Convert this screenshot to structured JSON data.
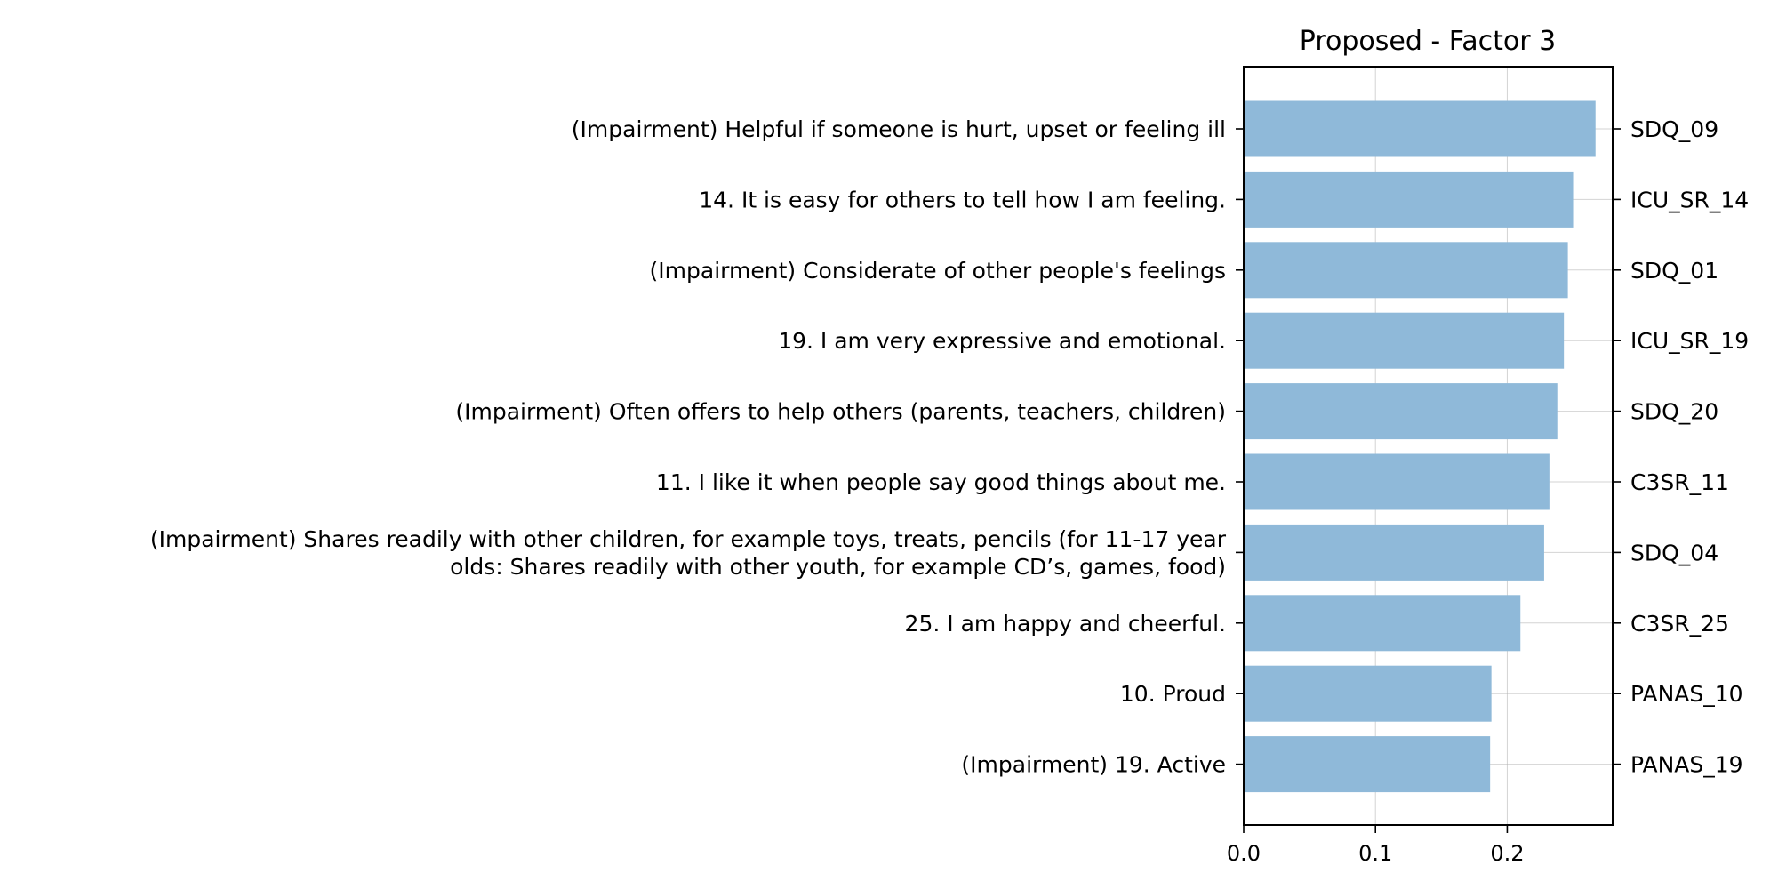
{
  "chart_data": {
    "type": "bar",
    "orientation": "horizontal",
    "title": "Proposed - Factor 3",
    "xlabel": "",
    "ylabel": "",
    "xlim": [
      0,
      0.28
    ],
    "x_ticks": [
      "0.0",
      "0.1",
      "0.2"
    ],
    "x_tick_values": [
      0.0,
      0.1,
      0.2
    ],
    "grid": true,
    "bar_color": "#8fb9d9",
    "bars": [
      {
        "label": [
          "(Impairment) Helpful if someone is hurt, upset or feeling ill"
        ],
        "code": "SDQ_09",
        "value": 0.267
      },
      {
        "label": [
          "14. It is easy for others to tell how I am feeling."
        ],
        "code": "ICU_SR_14",
        "value": 0.25
      },
      {
        "label": [
          "(Impairment) Considerate of other people's feelings"
        ],
        "code": "SDQ_01",
        "value": 0.246
      },
      {
        "label": [
          "19. I am very expressive and emotional."
        ],
        "code": "ICU_SR_19",
        "value": 0.243
      },
      {
        "label": [
          "(Impairment) Often offers to help others (parents, teachers, children)"
        ],
        "code": "SDQ_20",
        "value": 0.238
      },
      {
        "label": [
          "11. I like it when people say good things about me."
        ],
        "code": "C3SR_11",
        "value": 0.232
      },
      {
        "label": [
          "(Impairment) Shares readily with other children, for example toys, treats, pencils (for 11-17 year",
          "olds: Shares readily with other youth, for example CD’s, games, food)"
        ],
        "code": "SDQ_04",
        "value": 0.228
      },
      {
        "label": [
          "25. I am happy and cheerful."
        ],
        "code": "C3SR_25",
        "value": 0.21
      },
      {
        "label": [
          "10. Proud"
        ],
        "code": "PANAS_10",
        "value": 0.188
      },
      {
        "label": [
          "(Impairment) 19. Active"
        ],
        "code": "PANAS_19",
        "value": 0.187
      }
    ]
  }
}
